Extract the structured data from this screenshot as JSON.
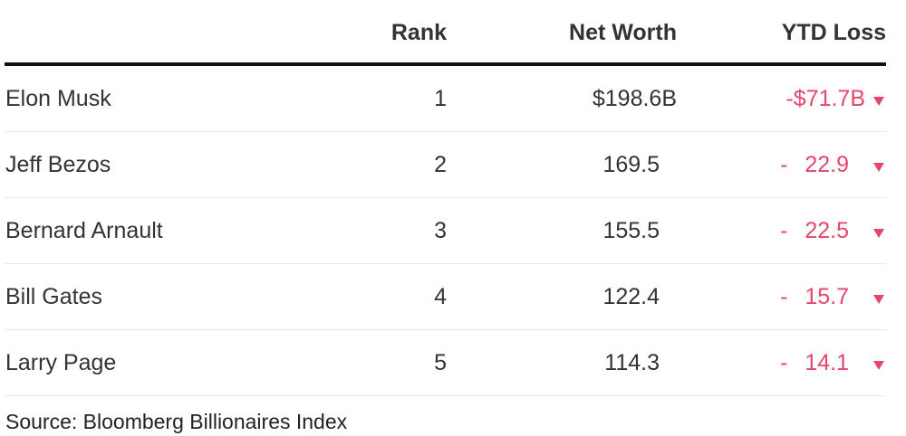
{
  "table": {
    "header": [
      "Rank",
      "Net Worth",
      "YTD Loss"
    ],
    "rows": [
      [
        "Elon Musk",
        1,
        "$198.6B",
        "-$71.7B"
      ],
      [
        "Jeff Bezos",
        2,
        "169.5",
        "- 22.9"
      ],
      [
        "Bernard Arnault",
        3,
        "155.5",
        "- 22.5"
      ],
      [
        "Bill Gates",
        4,
        "122.4",
        "- 15.7"
      ],
      [
        "Larry Page",
        5,
        "114.3",
        "- 14.1"
      ]
    ]
  },
  "source": "Source: Bloomberg Billionaires Index"
}
